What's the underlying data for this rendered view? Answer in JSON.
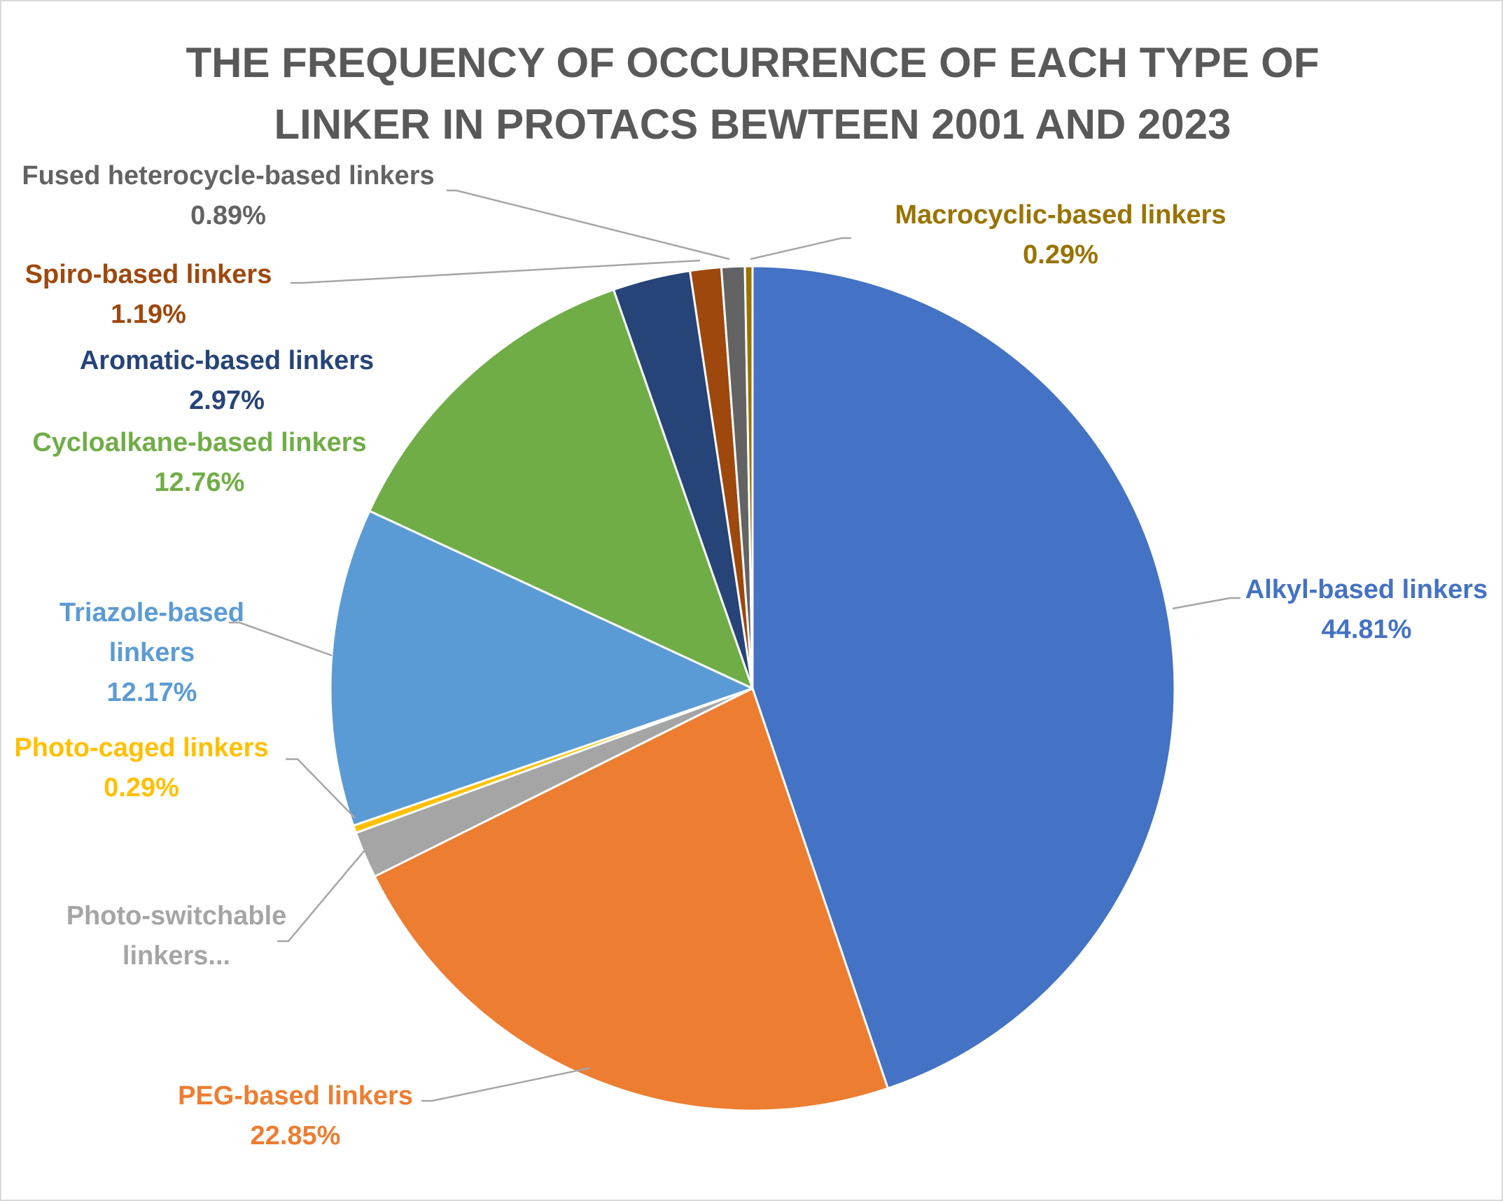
{
  "chart_data": {
    "type": "pie",
    "title_lines": [
      "THE FREQUENCY OF OCCURRENCE OF EACH TYPE OF",
      "LINKER IN PROTACS BEWTEEN 2001 AND 2023"
    ],
    "start_angle_deg": 0,
    "direction": "clockwise",
    "slices": [
      {
        "name": "Alkyl-based linkers",
        "label_lines": [
          "Alkyl-based linkers"
        ],
        "value": 44.81,
        "value_text": "44.81%",
        "color": "#4472C4",
        "label_color": "#4472C4"
      },
      {
        "name": "PEG-based linkers",
        "label_lines": [
          "PEG-based linkers"
        ],
        "value": 22.85,
        "value_text": "22.85%",
        "color": "#ED7D31",
        "label_color": "#ED7D31"
      },
      {
        "name": "Photo-switchable linkers",
        "label_lines": [
          "Photo-switchable",
          "linkers..."
        ],
        "value": 1.79,
        "value_text": "",
        "color": "#A5A5A5",
        "label_color": "#A5A5A5"
      },
      {
        "name": "Photo-caged linkers",
        "label_lines": [
          "Photo-caged linkers"
        ],
        "value": 0.29,
        "value_text": "0.29%",
        "color": "#FFC000",
        "label_color": "#FFC000"
      },
      {
        "name": "Triazole-based linkers",
        "label_lines": [
          "Triazole-based",
          "linkers"
        ],
        "value": 12.17,
        "value_text": "12.17%",
        "color": "#5B9BD5",
        "label_color": "#5B9BD5"
      },
      {
        "name": "Cycloalkane-based linkers",
        "label_lines": [
          "Cycloalkane-based linkers"
        ],
        "value": 12.76,
        "value_text": "12.76%",
        "color": "#70AD47",
        "label_color": "#70AD47"
      },
      {
        "name": "Aromatic-based linkers",
        "label_lines": [
          "Aromatic-based linkers"
        ],
        "value": 2.97,
        "value_text": "2.97%",
        "color": "#264478",
        "label_color": "#264478"
      },
      {
        "name": "Spiro-based linkers",
        "label_lines": [
          "Spiro-based linkers"
        ],
        "value": 1.19,
        "value_text": "1.19%",
        "color": "#9E480E",
        "label_color": "#9E480E"
      },
      {
        "name": "Fused heterocycle-based linkers",
        "label_lines": [
          "Fused heterocycle-based linkers"
        ],
        "value": 0.89,
        "value_text": "0.89%",
        "color": "#636363",
        "label_color": "#636363"
      },
      {
        "name": "Macrocyclic-based linkers",
        "label_lines": [
          "Macrocyclic-based linkers"
        ],
        "value": 0.29,
        "value_text": "0.29%",
        "color": "#997300",
        "label_color": "#997300"
      }
    ]
  }
}
